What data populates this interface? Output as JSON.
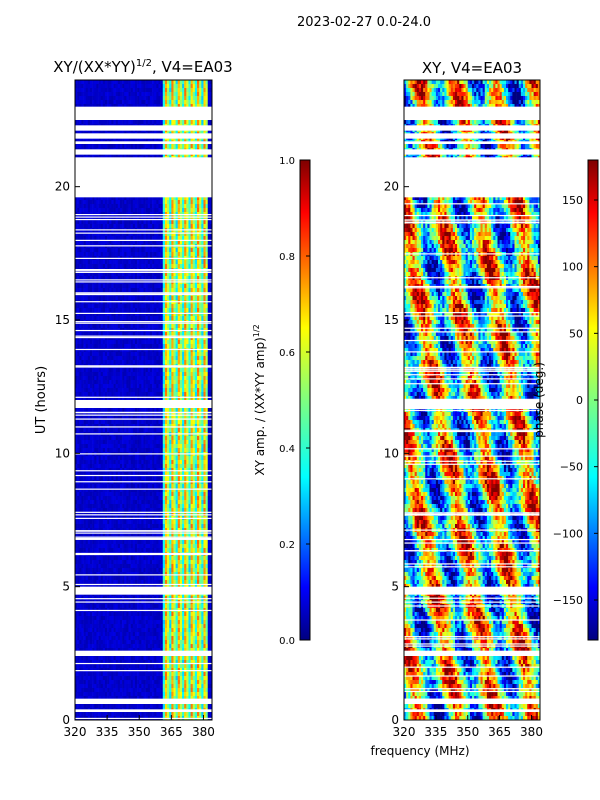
{
  "figure": {
    "suptitle": "2023-02-27 0.0-24.0",
    "shared_xlabel": "frequency (MHz)"
  },
  "colors": {
    "jet_stops": [
      "#00007f",
      "#0000ff",
      "#007fff",
      "#00ffff",
      "#7fff7f",
      "#ffff00",
      "#ff7f00",
      "#ff0000",
      "#7f0000"
    ],
    "gap": "#ffffff",
    "frame": "#000000"
  },
  "chart_data": [
    {
      "type": "heatmap",
      "title_main": "XY/(XX*YY)",
      "title_sup": "1/2",
      "title_rest": ", V4=EA03",
      "ylabel": "UT (hours)",
      "xlabel": "",
      "xlim": [
        320,
        384
      ],
      "ylim": [
        0,
        24
      ],
      "xticks": [
        "320",
        "335",
        "350",
        "365",
        "380"
      ],
      "xtick_values": [
        320,
        335,
        350,
        365,
        380
      ],
      "yticks": [
        "0",
        "5",
        "10",
        "15",
        "20"
      ],
      "ytick_values": [
        0,
        5,
        10,
        15,
        20
      ],
      "colorbar": {
        "label": "XY amp. / (XX*YY amp)",
        "label_sup": "1/2",
        "range": [
          0.0,
          1.0
        ],
        "ticks": [
          "0.0",
          "0.2",
          "0.4",
          "0.6",
          "0.8",
          "1.0"
        ],
        "tick_values": [
          0.0,
          0.2,
          0.4,
          0.6,
          0.8,
          1.0
        ]
      },
      "data_gaps_hours": [
        [
          19.6,
          21.1
        ],
        [
          21.2,
          21.4
        ],
        [
          21.6,
          21.7
        ],
        [
          21.8,
          22.0
        ],
        [
          22.1,
          22.3
        ],
        [
          22.5,
          23.0
        ],
        [
          2.4,
          2.6
        ],
        [
          0.3,
          0.4
        ],
        [
          0.6,
          0.8
        ],
        [
          4.7,
          5.0
        ],
        [
          11.7,
          12.0
        ]
      ],
      "high_amplitude_band_MHz": [
        361,
        382
      ]
    },
    {
      "type": "heatmap",
      "title_main": "XY, V4=EA03",
      "ylabel": "",
      "xlabel": "frequency (MHz)",
      "xlim": [
        320,
        384
      ],
      "ylim": [
        0,
        24
      ],
      "xticks": [
        "320",
        "335",
        "350",
        "365",
        "380"
      ],
      "xtick_values": [
        320,
        335,
        350,
        365,
        380
      ],
      "yticks": [
        "0",
        "5",
        "10",
        "15",
        "20"
      ],
      "ytick_values": [
        0,
        5,
        10,
        15,
        20
      ],
      "colorbar": {
        "label": "phase (deg.)",
        "range": [
          -180,
          180
        ],
        "ticks": [
          "−150",
          "−100",
          "−50",
          "0",
          "50",
          "100",
          "150"
        ],
        "tick_values": [
          -150,
          -100,
          -50,
          0,
          50,
          100,
          150
        ]
      },
      "data_gaps_hours": [
        [
          19.6,
          21.1
        ],
        [
          21.2,
          21.4
        ],
        [
          21.6,
          21.7
        ],
        [
          21.8,
          22.0
        ],
        [
          22.1,
          22.3
        ],
        [
          22.5,
          23.0
        ],
        [
          2.4,
          2.6
        ],
        [
          0.3,
          0.4
        ],
        [
          0.6,
          0.8
        ],
        [
          4.7,
          5.0
        ],
        [
          11.7,
          12.0
        ]
      ]
    }
  ]
}
